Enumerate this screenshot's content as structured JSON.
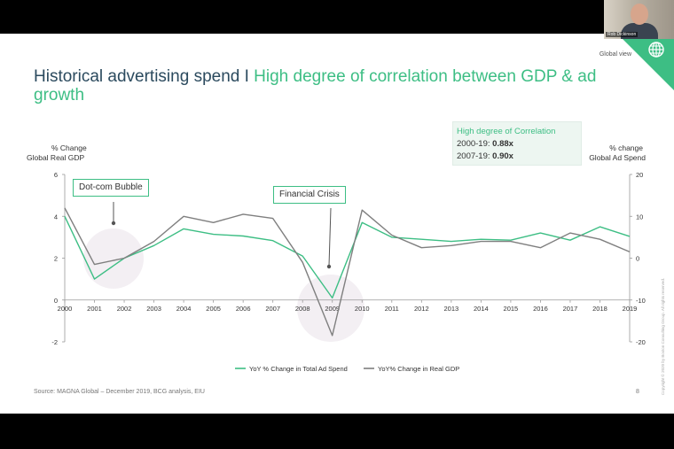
{
  "slide": {
    "title_part1": "Historical advertising spend I",
    "title_part2": "High degree of correlation between GDP & ad growth",
    "global_view": "Global view",
    "webcam_name": "Rob Dickinson"
  },
  "chart_data": {
    "type": "line",
    "x": [
      "2000",
      "2001",
      "2002",
      "2003",
      "2004",
      "2005",
      "2006",
      "2007",
      "2008",
      "2009",
      "2010",
      "2011",
      "2012",
      "2013",
      "2014",
      "2015",
      "2016",
      "2017",
      "2018",
      "2019"
    ],
    "left_axis": {
      "label_line1": "% Change",
      "label_line2": "Global Real GDP",
      "ylim": [
        -2,
        6
      ],
      "ticks": [
        "6",
        "4",
        "2",
        "0",
        "-2"
      ]
    },
    "right_axis": {
      "label_line1": "% change",
      "label_line2": "Global Ad Spend",
      "ylim": [
        -20,
        20
      ],
      "ticks": [
        "20",
        "10",
        "0",
        "-10",
        "-20"
      ]
    },
    "series": [
      {
        "name": "YoY % Change in Total Ad Spend",
        "axis": "right",
        "color": "#3dbe84",
        "values": [
          10,
          -5,
          0,
          3,
          7,
          5.7,
          5.3,
          4.2,
          0.5,
          -9.5,
          8.5,
          5,
          4.5,
          4,
          4.5,
          4.3,
          6,
          4.3,
          7.5,
          5.2
        ]
      },
      {
        "name": "YoY% Change in Real GDP",
        "axis": "left",
        "color": "#7f7f7f",
        "values": [
          4.4,
          1.7,
          2.0,
          2.8,
          4.0,
          3.7,
          4.1,
          3.9,
          1.8,
          -1.7,
          4.3,
          3.1,
          2.5,
          2.6,
          2.8,
          2.8,
          2.5,
          3.2,
          2.9,
          2.3
        ]
      }
    ],
    "legend_position": "bottom-center",
    "grid": false
  },
  "correlation": {
    "title": "High degree of Correlation",
    "row1_label": "2000-19:",
    "row1_value": "0.88x",
    "row2_label": "2007-19:",
    "row2_value": "0.90x"
  },
  "callouts": {
    "dotcom": "Dot-com Bubble",
    "financial": "Financial Crisis"
  },
  "footer": {
    "source": "Source: MAGNA Global – December 2019, BCG analysis, EIU",
    "page": "8",
    "copyright": "Copyright © 2020 by Boston Consulting Group. All rights reserved."
  },
  "colors": {
    "accent_green": "#3dbe84",
    "title_blue": "#2b4a5e",
    "gdp_gray": "#7f7f7f"
  }
}
